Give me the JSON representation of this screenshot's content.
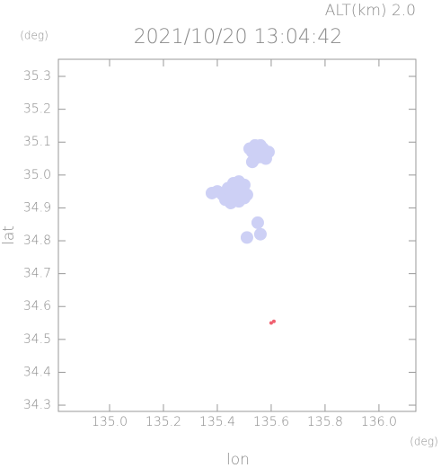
{
  "chart_data": {
    "type": "scatter",
    "title": "2021/10/20 13:04:42",
    "altitude": "ALT(km) 2.0",
    "x_unit": "(deg)",
    "y_unit": "(deg)",
    "xlabel": "lon",
    "ylabel": "lat",
    "xlim": [
      134.81,
      136.137
    ],
    "ylim": [
      34.281,
      35.352
    ],
    "xticks": [
      {
        "value": 135.0,
        "label": "135.0"
      },
      135.2,
      135.4,
      135.6,
      135.8,
      {
        "value": 136.0,
        "label": "136.0"
      }
    ],
    "yticks": [
      34.3,
      34.4,
      34.5,
      34.6,
      34.7,
      34.8,
      34.9,
      {
        "value": 35.0,
        "label": "35.0"
      },
      35.1,
      35.2,
      35.3
    ],
    "series": [
      {
        "color": "#cdd0f5",
        "x": [
          135.52,
          135.54,
          135.56,
          135.57,
          135.53,
          135.55,
          135.57,
          135.59,
          135.54,
          135.56,
          135.58,
          135.53,
          135.38,
          135.4,
          135.42,
          135.44,
          135.46,
          135.48,
          135.5,
          135.43,
          135.45,
          135.47,
          135.49,
          135.51,
          135.45,
          135.48,
          135.5,
          135.55,
          135.51,
          135.56
        ],
        "y": [
          35.08,
          35.09,
          35.09,
          35.08,
          35.07,
          35.07,
          35.065,
          35.07,
          35.05,
          35.055,
          35.05,
          35.04,
          34.945,
          34.95,
          34.94,
          34.96,
          34.975,
          34.98,
          34.97,
          34.925,
          34.93,
          34.945,
          34.95,
          34.94,
          34.915,
          34.92,
          34.93,
          34.855,
          34.81,
          34.82
        ]
      },
      {
        "color": "#f06070",
        "x": [
          135.61,
          135.6
        ],
        "y": [
          34.555,
          34.55
        ]
      }
    ]
  }
}
